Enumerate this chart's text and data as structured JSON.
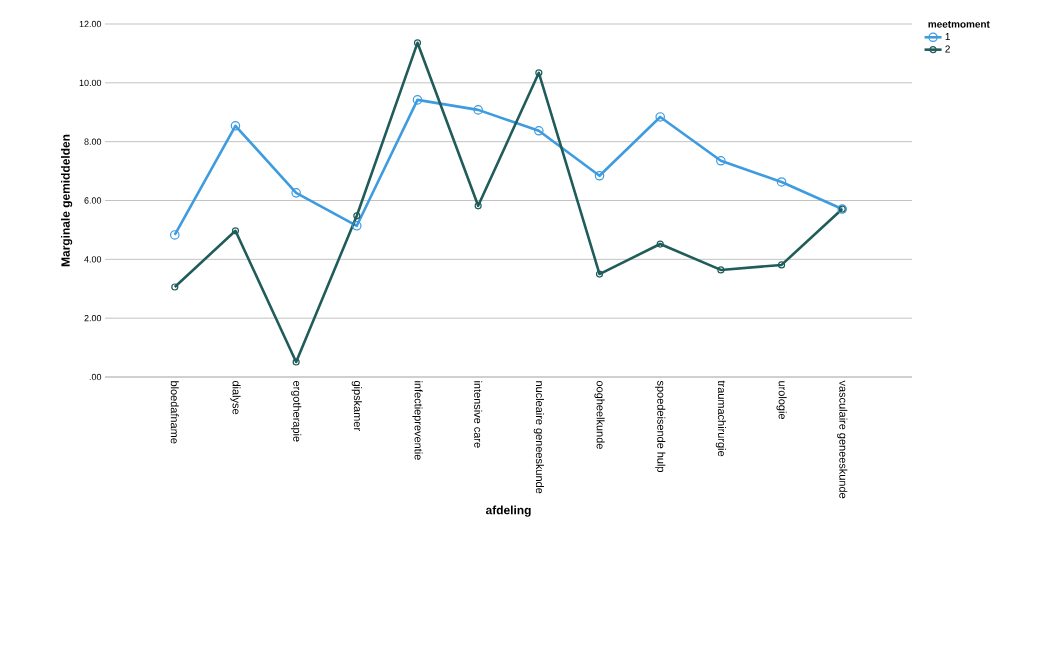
{
  "chart_data": {
    "type": "line",
    "xlabel": "afdeling",
    "ylabel": "Marginale gemiddelden",
    "legend_title": "meetmoment",
    "categories": [
      "bloedafname",
      "dialyse",
      "ergotherapie",
      "gipskamer",
      "infectiepreventie",
      "intensive care",
      "nucleaire geneeskunde",
      "oogheelkunde",
      "spoedeisende hulp",
      "traumachirurgie",
      "urologie",
      "vasculaire geneeskunde"
    ],
    "series": [
      {
        "name": "1",
        "color": "#3d9be0",
        "values": [
          4.83,
          8.54,
          6.26,
          5.14,
          9.42,
          9.08,
          8.37,
          6.84,
          8.84,
          7.35,
          6.63,
          5.71
        ]
      },
      {
        "name": "2",
        "color": "#1f5c5a",
        "values": [
          3.06,
          4.97,
          0.51,
          5.48,
          11.36,
          5.82,
          10.34,
          3.5,
          4.52,
          3.64,
          3.81,
          5.71
        ]
      }
    ],
    "ylim": [
      0,
      12
    ],
    "yticks": [
      {
        "value": 0,
        "label": ".00"
      },
      {
        "value": 2,
        "label": "2.00"
      },
      {
        "value": 4,
        "label": "4.00"
      },
      {
        "value": 6,
        "label": "6.00"
      },
      {
        "value": 8,
        "label": "8.00"
      },
      {
        "value": 10,
        "label": "10.00"
      },
      {
        "value": 12,
        "label": "12.00"
      }
    ],
    "grid": "y",
    "legend": "top right",
    "marker": "circle",
    "line_style": "solid"
  }
}
